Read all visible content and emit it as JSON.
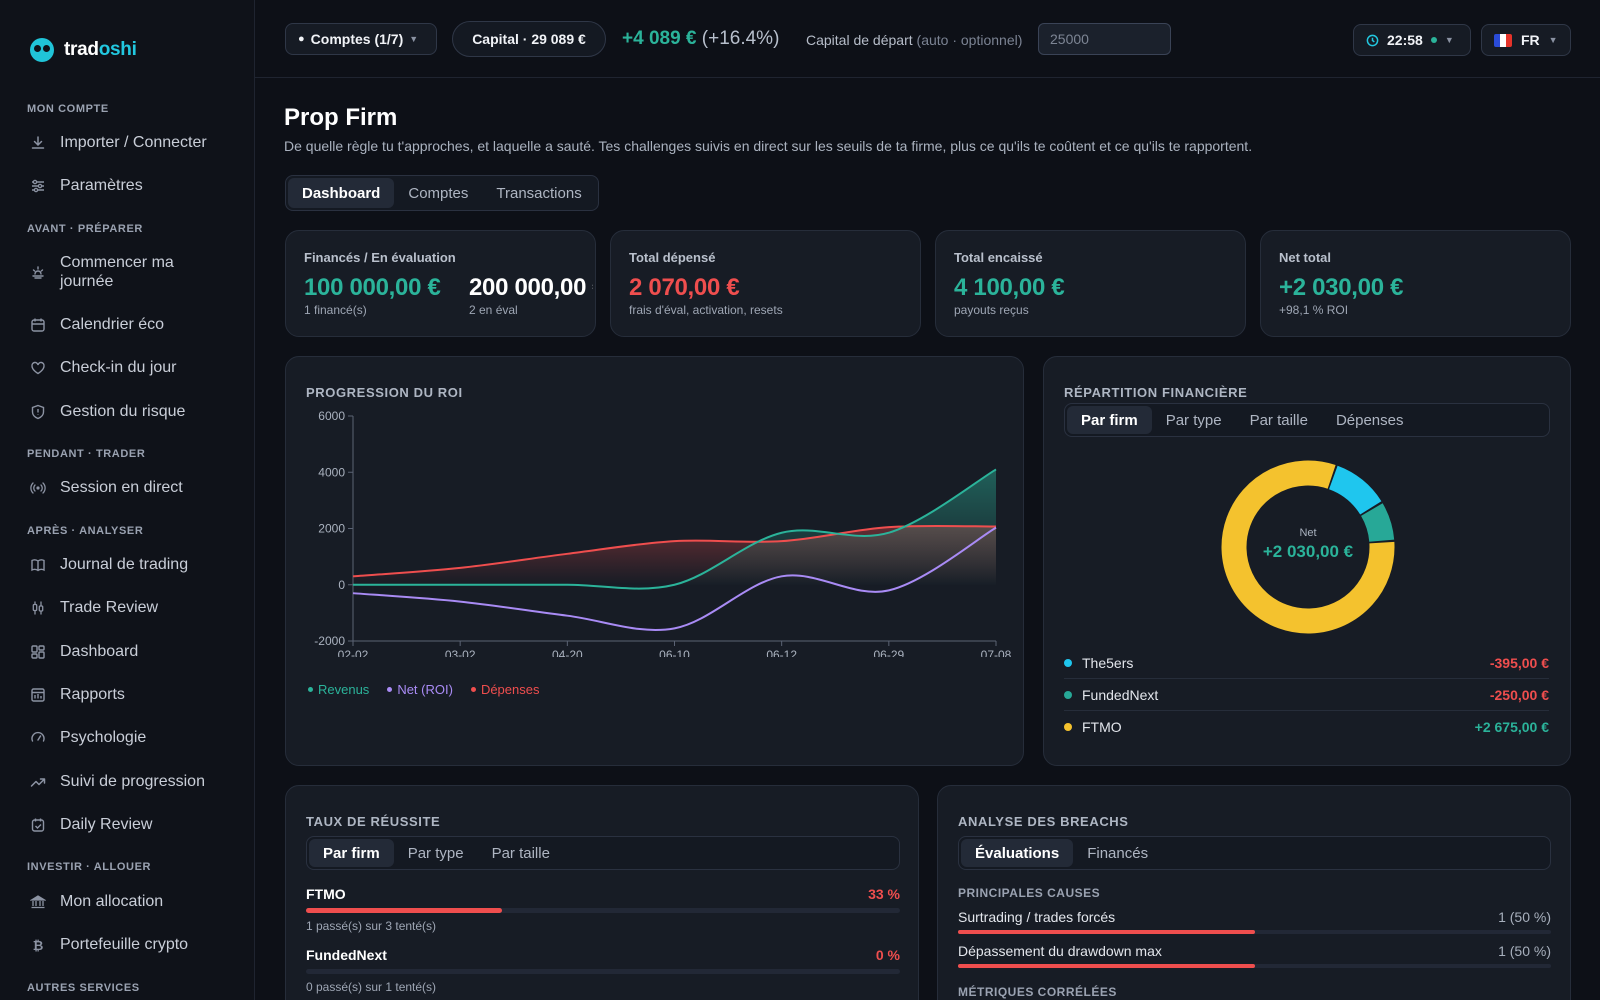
{
  "brand": {
    "name_a": "trad",
    "name_b": "oshi"
  },
  "sidebar": {
    "sections": [
      {
        "title": "MON COMPTE",
        "items": [
          {
            "label": "Importer / Connecter",
            "icon": "download-icon"
          },
          {
            "label": "Paramètres",
            "icon": "sliders-icon"
          }
        ]
      },
      {
        "title": "AVANT · PRÉPARER",
        "items": [
          {
            "label": "Commencer ma journée",
            "icon": "sunrise-icon"
          },
          {
            "label": "Calendrier éco",
            "icon": "calendar-icon"
          },
          {
            "label": "Check-in du jour",
            "icon": "heart-icon"
          },
          {
            "label": "Gestion du risque",
            "icon": "shield-icon"
          }
        ]
      },
      {
        "title": "PENDANT · TRADER",
        "items": [
          {
            "label": "Session en direct",
            "icon": "broadcast-icon"
          }
        ]
      },
      {
        "title": "APRÈS · ANALYSER",
        "items": [
          {
            "label": "Journal de trading",
            "icon": "book-icon"
          },
          {
            "label": "Trade Review",
            "icon": "candlestick-icon"
          },
          {
            "label": "Dashboard",
            "icon": "grid-icon"
          },
          {
            "label": "Rapports",
            "icon": "report-icon"
          },
          {
            "label": "Psychologie",
            "icon": "gauge-icon"
          },
          {
            "label": "Suivi de progression",
            "icon": "trending-up-icon"
          },
          {
            "label": "Daily Review",
            "icon": "calendar-check-icon"
          }
        ]
      },
      {
        "title": "INVESTIR · ALLOUER",
        "items": [
          {
            "label": "Mon allocation",
            "icon": "bank-icon"
          },
          {
            "label": "Portefeuille crypto",
            "icon": "bitcoin-icon"
          }
        ]
      },
      {
        "title": "AUTRES SERVICES",
        "items": []
      }
    ]
  },
  "topbar": {
    "accounts": "Comptes (1/7)",
    "capital_label": "Capital ·",
    "capital_value": "29 089 €",
    "gain": "+4 089 €",
    "gain_pct": "(+16.4%)",
    "start_label": "Capital de départ",
    "start_hint": "(auto · optionnel)",
    "start_placeholder": "25000",
    "time": "22:58",
    "lang": "FR"
  },
  "page": {
    "title": "Prop Firm",
    "subtitle": "De quelle règle tu t'approches, et laquelle a sauté. Tes challenges suivis en direct sur les seuils de ta firme, plus ce qu'ils te coûtent et ce qu'ils te rapportent.",
    "tabs": [
      "Dashboard",
      "Comptes",
      "Transactions"
    ]
  },
  "stats": {
    "funded": {
      "label": "Financés / En évaluation",
      "value_a": "100 000,00 €",
      "sub_a": "1 financé(s)",
      "value_b": "200 000,00 €",
      "sub_b": "2 en éval"
    },
    "spent": {
      "label": "Total dépensé",
      "value": "2 070,00 €",
      "sub": "frais d'éval, activation, resets"
    },
    "cashed": {
      "label": "Total encaissé",
      "value": "4 100,00 €",
      "sub": "payouts reçus"
    },
    "net": {
      "label": "Net total",
      "value": "+2 030,00 €",
      "sub": "+98,1 % ROI"
    }
  },
  "roi": {
    "title": "PROGRESSION DU ROI"
  },
  "chart_data": {
    "type": "line",
    "x": [
      "02-02",
      "03-02",
      "04-20",
      "06-10",
      "06-12",
      "06-29",
      "07-08"
    ],
    "ylim": [
      -2000,
      6000
    ],
    "yticks": [
      6000,
      4000,
      2000,
      0,
      -2000
    ],
    "series": [
      {
        "name": "Revenus",
        "color": "#2bb39a",
        "values": [
          0,
          0,
          0,
          0,
          1850,
          1850,
          4100
        ]
      },
      {
        "name": "Net (ROI)",
        "color": "#a98bf5",
        "values": [
          -300,
          -600,
          -1100,
          -1550,
          300,
          -200,
          2030
        ]
      },
      {
        "name": "Dépenses",
        "color": "#ef4e4e",
        "values": [
          300,
          600,
          1100,
          1550,
          1550,
          2050,
          2070
        ]
      }
    ]
  },
  "distribution": {
    "title": "RÉPARTITION FINANCIÈRE",
    "tabs": [
      "Par firm",
      "Par type",
      "Par taille",
      "Dépenses"
    ],
    "center_label": "Net",
    "center_value": "+2 030,00 €",
    "items": [
      {
        "name": "The5ers",
        "amount": "-395,00 €",
        "color": "#1fc6ee",
        "share": 0.11,
        "positive": false
      },
      {
        "name": "FundedNext",
        "amount": "-250,00 €",
        "color": "#27a897",
        "share": 0.075,
        "positive": false
      },
      {
        "name": "FTMO",
        "amount": "+2 675,00 €",
        "color": "#f4c22e",
        "share": 0.815,
        "positive": true
      }
    ]
  },
  "success": {
    "title": "TAUX DE RÉUSSITE",
    "tabs": [
      "Par firm",
      "Par type",
      "Par taille"
    ],
    "items": [
      {
        "name": "FTMO",
        "pct": "33 %",
        "fill": 0.33,
        "sub": "1 passé(s) sur 3 tenté(s)"
      },
      {
        "name": "FundedNext",
        "pct": "0 %",
        "fill": 0,
        "sub": "0 passé(s) sur 1 tenté(s)"
      }
    ]
  },
  "breach": {
    "title": "ANALYSE DES BREACHS",
    "tabs": [
      "Évaluations",
      "Financés"
    ],
    "causes_title": "PRINCIPALES CAUSES",
    "causes": [
      {
        "label": "Surtrading / trades forcés",
        "count": "1 (50 %)",
        "fill": 0.5
      },
      {
        "label": "Dépassement du drawdown max",
        "count": "1 (50 %)",
        "fill": 0.5
      }
    ],
    "metrics_title": "MÉTRIQUES CORRÉLÉES"
  },
  "colors": {
    "accent": "#22c8e0",
    "positive": "#2bb39a",
    "negative": "#ef4e4e",
    "gold": "#f4c22e"
  }
}
